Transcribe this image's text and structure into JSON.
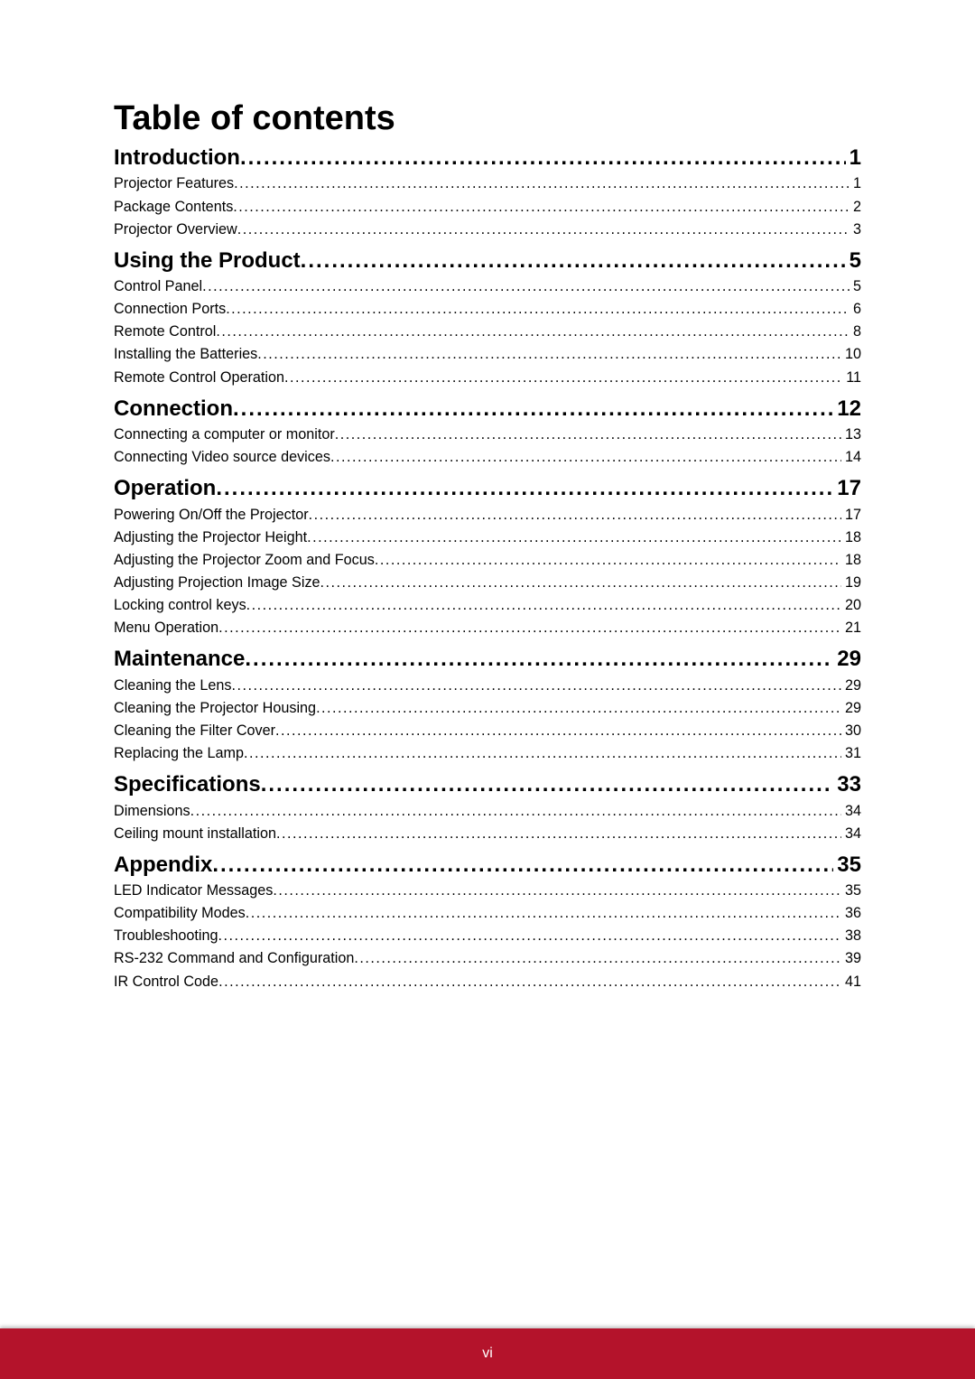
{
  "colors": {
    "page_bg": "#ffffff",
    "text": "#000000",
    "footer_bg": "#b4132b",
    "footer_text": "#ffffff"
  },
  "typography": {
    "title_fontsize_pt": 28,
    "section_fontsize_pt": 18,
    "sub_fontsize_pt": 12,
    "footer_fontsize_pt": 12,
    "title_weight": 700,
    "section_weight": 700,
    "sub_weight": 400,
    "font_family": "Arial"
  },
  "title": "Table of contents",
  "footer_page_label": "vi",
  "toc": {
    "sections": [
      {
        "label": "Introduction",
        "page": "1",
        "items": [
          {
            "label": "Projector Features",
            "page": "1"
          },
          {
            "label": "Package Contents",
            "page": "2"
          },
          {
            "label": "Projector Overview",
            "page": "3"
          }
        ]
      },
      {
        "label": "Using the Product",
        "page": "5",
        "items": [
          {
            "label": "Control Panel",
            "page": "5"
          },
          {
            "label": "Connection Ports",
            "page": "6"
          },
          {
            "label": "Remote Control",
            "page": "8"
          },
          {
            "label": "Installing the Batteries",
            "page": "10"
          },
          {
            "label": "Remote Control Operation",
            "page": "11"
          }
        ]
      },
      {
        "label": "Connection",
        "page": "12",
        "items": [
          {
            "label": "Connecting a computer or monitor",
            "page": "13"
          },
          {
            "label": "Connecting Video source devices",
            "page": "14"
          }
        ]
      },
      {
        "label": "Operation",
        "page": "17",
        "items": [
          {
            "label": "Powering On/Off the Projector",
            "page": "17"
          },
          {
            "label": "Adjusting the Projector Height",
            "page": "18"
          },
          {
            "label": "Adjusting the Projector Zoom and Focus",
            "page": "18"
          },
          {
            "label": "Adjusting Projection Image Size",
            "page": "19"
          },
          {
            "label": "Locking control keys",
            "page": "20"
          },
          {
            "label": "Menu Operation",
            "page": "21"
          }
        ]
      },
      {
        "label": "Maintenance",
        "page": "29",
        "items": [
          {
            "label": "Cleaning the Lens",
            "page": "29"
          },
          {
            "label": "Cleaning the Projector Housing",
            "page": "29"
          },
          {
            "label": "Cleaning the Filter Cover",
            "page": "30"
          },
          {
            "label": "Replacing the Lamp",
            "page": "31"
          }
        ]
      },
      {
        "label": "Specifications",
        "page": "33",
        "items": [
          {
            "label": "Dimensions",
            "page": "34"
          },
          {
            "label": "Ceiling mount installation",
            "page": "34"
          }
        ]
      },
      {
        "label": "Appendix",
        "page": "35",
        "items": [
          {
            "label": "LED Indicator Messages",
            "page": "35"
          },
          {
            "label": "Compatibility Modes",
            "page": "36"
          },
          {
            "label": "Troubleshooting",
            "page": "38"
          },
          {
            "label": "RS-232 Command and Configuration",
            "page": "39"
          },
          {
            "label": "IR Control Code",
            "page": "41"
          }
        ]
      }
    ]
  }
}
